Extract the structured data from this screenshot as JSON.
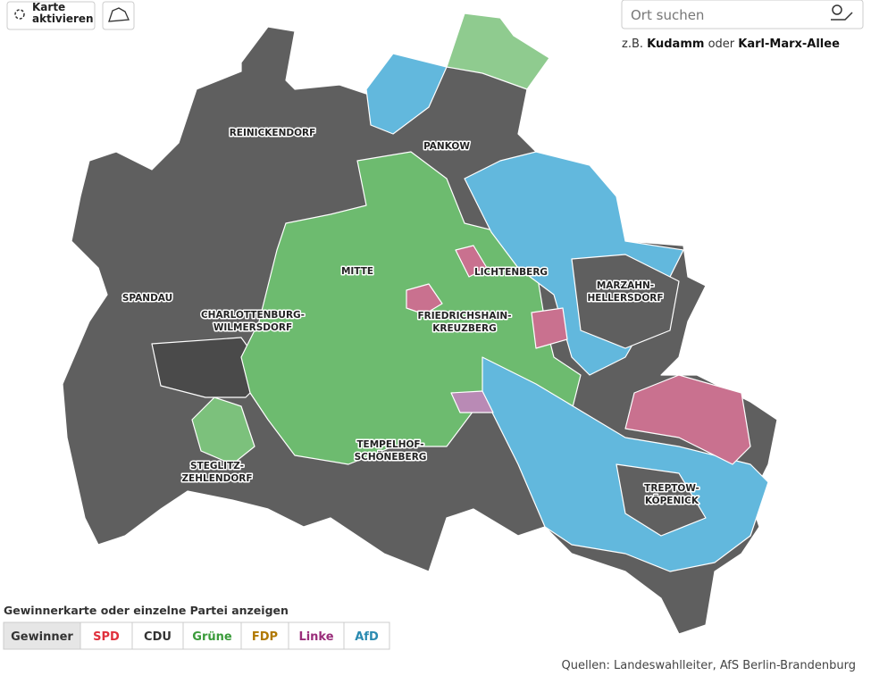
{
  "controls": {
    "activate_map": [
      "Karte",
      "aktivieren"
    ]
  },
  "search": {
    "placeholder": "Ort suchen",
    "hint": {
      "prefix": "z.B.",
      "example1": "Kudamm",
      "middle": "oder",
      "example2": "Karl-Marx-Allee"
    }
  },
  "districts": [
    {
      "label": [
        "REINICKENDORF"
      ]
    },
    {
      "label": [
        "PANKOW"
      ]
    },
    {
      "label": [
        "MITTE"
      ]
    },
    {
      "label": [
        "LICHTENBERG"
      ]
    },
    {
      "label": [
        "SPANDAU"
      ]
    },
    {
      "label": [
        "CHARLOTTENBURG-",
        "WILMERSDORF"
      ]
    },
    {
      "label": [
        "FRIEDRICHSHAIN-",
        "KREUZBERG"
      ]
    },
    {
      "label": [
        "MARZAHN-",
        "HELLERSDORF"
      ]
    },
    {
      "label": [
        "TEMPELHOF-",
        "SCHÖNEBERG"
      ]
    },
    {
      "label": [
        "STEGLITZ-",
        "ZEHLENDORF"
      ]
    },
    {
      "label": [
        "TREPTOW-",
        "KÖPENICK"
      ]
    }
  ],
  "legend": {
    "title": "Gewinnerkarte oder einzelne Partei anzeigen",
    "buttons": [
      {
        "label": "Gewinner",
        "color": "#333333"
      },
      {
        "label": "SPD",
        "color": "#e0303c"
      },
      {
        "label": "CDU",
        "color": "#333333"
      },
      {
        "label": "Grüne",
        "color": "#3a9b3a"
      },
      {
        "label": "FDP",
        "color": "#b07800"
      },
      {
        "label": "Linke",
        "color": "#9a2d7a"
      },
      {
        "label": "AfD",
        "color": "#2a8ab0"
      }
    ]
  },
  "source": {
    "prefix": "Quellen:",
    "text": "Landeswahlleiter, AfS Berlin-Brandenburg"
  }
}
